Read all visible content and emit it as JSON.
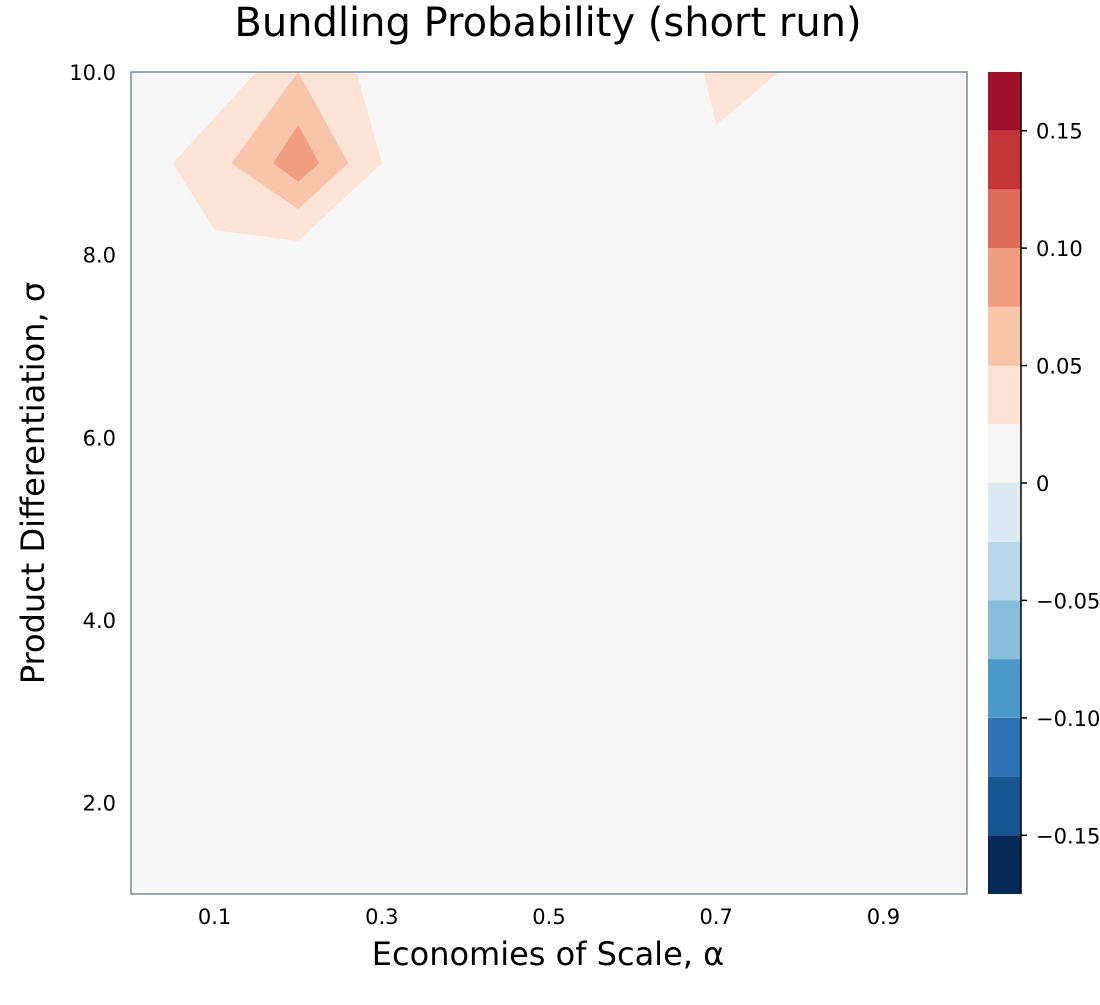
{
  "chart_data": {
    "type": "contour",
    "title": "Bundling Probability (short run)",
    "xlabel": "Economies of Scale, α",
    "ylabel": "Product Differentiation, σ",
    "xlim": [
      0.0,
      1.0
    ],
    "ylim": [
      1.0,
      10.0
    ],
    "x_ticks": [
      0.1,
      0.3,
      0.5,
      0.7,
      0.9
    ],
    "x_tick_labels": [
      "0.1",
      "0.3",
      "0.5",
      "0.7",
      "0.9"
    ],
    "y_ticks": [
      2.0,
      4.0,
      6.0,
      8.0,
      10.0
    ],
    "y_tick_labels": [
      "2.0",
      "4.0",
      "6.0",
      "8.0",
      "10.0"
    ],
    "background_value": 0,
    "background_color": "#f6f6f6",
    "regions": [
      {
        "level": 0.025,
        "color": "#fce3d6",
        "points": [
          [
            0.05,
            9.0
          ],
          [
            0.15,
            10.0
          ],
          [
            0.27,
            10.0
          ],
          [
            0.3,
            9.0
          ],
          [
            0.2,
            8.15
          ],
          [
            0.1,
            8.27
          ]
        ]
      },
      {
        "level": 0.025,
        "color": "#fce3d6",
        "points": [
          [
            0.685,
            10.0
          ],
          [
            0.775,
            10.0
          ],
          [
            0.7,
            9.42
          ]
        ]
      },
      {
        "level": 0.05,
        "color": "#f8c4aa",
        "points": [
          [
            0.12,
            9.0
          ],
          [
            0.2,
            10.0
          ],
          [
            0.26,
            9.0
          ],
          [
            0.2,
            8.5
          ]
        ]
      },
      {
        "level": 0.075,
        "color": "#f09d81",
        "points": [
          [
            0.17,
            9.0
          ],
          [
            0.2,
            9.42
          ],
          [
            0.225,
            9.0
          ],
          [
            0.2,
            8.8
          ]
        ]
      }
    ],
    "colorbar": {
      "vmin": -0.175,
      "vmax": 0.175,
      "levels": [
        {
          "from": -0.175,
          "to": -0.15,
          "color": "#072a57"
        },
        {
          "from": -0.15,
          "to": -0.125,
          "color": "#195594"
        },
        {
          "from": -0.125,
          "to": -0.1,
          "color": "#2d73b5"
        },
        {
          "from": -0.1,
          "to": -0.075,
          "color": "#4b99c8"
        },
        {
          "from": -0.075,
          "to": -0.05,
          "color": "#88bddb"
        },
        {
          "from": -0.05,
          "to": -0.025,
          "color": "#b7d7e8"
        },
        {
          "from": -0.025,
          "to": 0.0,
          "color": "#dbe9f2"
        },
        {
          "from": 0.0,
          "to": 0.025,
          "color": "#f6f6f6"
        },
        {
          "from": 0.025,
          "to": 0.05,
          "color": "#fce3d6"
        },
        {
          "from": 0.05,
          "to": 0.075,
          "color": "#f8c4aa"
        },
        {
          "from": 0.075,
          "to": 0.1,
          "color": "#f09d81"
        },
        {
          "from": 0.1,
          "to": 0.125,
          "color": "#df6d59"
        },
        {
          "from": 0.125,
          "to": 0.15,
          "color": "#c53537"
        },
        {
          "from": 0.15,
          "to": 0.175,
          "color": "#9e1128"
        },
        {
          "from": 0.175,
          "to": 0.2,
          "color": "#6c0120"
        }
      ],
      "ticks": [
        -0.15,
        -0.1,
        -0.05,
        0,
        0.05,
        0.1,
        0.15
      ],
      "tick_labels": [
        "−0.15",
        "−0.10",
        "−0.05",
        "0",
        "0.05",
        "0.10",
        "0.15"
      ]
    }
  }
}
